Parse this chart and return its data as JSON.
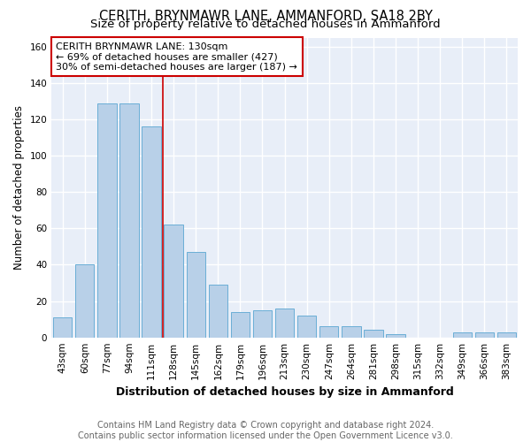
{
  "title": "CERITH, BRYNMAWR LANE, AMMANFORD, SA18 2BY",
  "subtitle": "Size of property relative to detached houses in Ammanford",
  "xlabel": "Distribution of detached houses by size in Ammanford",
  "ylabel": "Number of detached properties",
  "categories": [
    "43sqm",
    "60sqm",
    "77sqm",
    "94sqm",
    "111sqm",
    "128sqm",
    "145sqm",
    "162sqm",
    "179sqm",
    "196sqm",
    "213sqm",
    "230sqm",
    "247sqm",
    "264sqm",
    "281sqm",
    "298sqm",
    "315sqm",
    "332sqm",
    "349sqm",
    "366sqm",
    "383sqm"
  ],
  "values": [
    11,
    40,
    129,
    129,
    116,
    62,
    47,
    29,
    14,
    15,
    16,
    12,
    6,
    6,
    4,
    2,
    0,
    0,
    3,
    3,
    3
  ],
  "bar_color": "#b8d0e8",
  "bar_edge_color": "#6aaed6",
  "annotation_text": "CERITH BRYNMAWR LANE: 130sqm\n← 69% of detached houses are smaller (427)\n30% of semi-detached houses are larger (187) →",
  "annotation_box_color": "white",
  "annotation_box_edge_color": "#cc0000",
  "vline_x": 5,
  "vline_color": "#cc0000",
  "ylim": [
    0,
    165
  ],
  "yticks": [
    0,
    20,
    40,
    60,
    80,
    100,
    120,
    140,
    160
  ],
  "background_color": "#e8eef8",
  "grid_color": "white",
  "footer_text": "Contains HM Land Registry data © Crown copyright and database right 2024.\nContains public sector information licensed under the Open Government Licence v3.0.",
  "title_fontsize": 10.5,
  "subtitle_fontsize": 9.5,
  "xlabel_fontsize": 9,
  "ylabel_fontsize": 8.5,
  "tick_fontsize": 7.5,
  "annotation_fontsize": 8,
  "footer_fontsize": 7
}
